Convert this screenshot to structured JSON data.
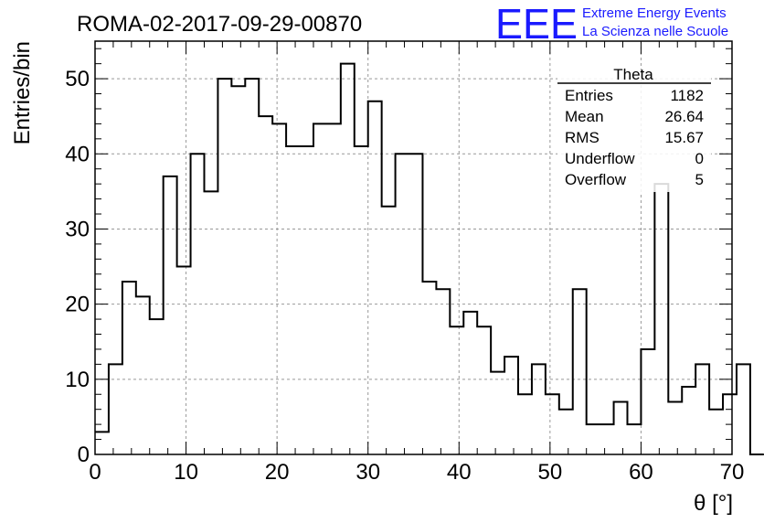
{
  "chart_data": {
    "type": "histogram",
    "title": "ROMA-02-2017-09-29-00870",
    "xlabel": "θ [°]",
    "ylabel": "Entries/bin",
    "xlim": [
      0,
      70
    ],
    "ylim": [
      0,
      55
    ],
    "bin_width": 1.5,
    "x_ticks": [
      0,
      10,
      20,
      30,
      40,
      50,
      60,
      70
    ],
    "y_ticks": [
      0,
      10,
      20,
      30,
      40,
      50
    ],
    "grid": true,
    "values": [
      3,
      12,
      23,
      21,
      18,
      37,
      25,
      40,
      35,
      50,
      49,
      50,
      45,
      44,
      41,
      41,
      44,
      44,
      52,
      41,
      47,
      33,
      40,
      40,
      23,
      22,
      17,
      19,
      17,
      11,
      13,
      8,
      12,
      8,
      6,
      22,
      4,
      4,
      7,
      4,
      14,
      36,
      7,
      9,
      12,
      6,
      8,
      12,
      0
    ]
  },
  "stats_box": {
    "title": "Theta",
    "rows": [
      {
        "label": "Entries",
        "value": "1182"
      },
      {
        "label": "Mean",
        "value": "26.64"
      },
      {
        "label": "RMS",
        "value": "15.67"
      },
      {
        "label": "Underflow",
        "value": "0"
      },
      {
        "label": "Overflow",
        "value": "5"
      }
    ]
  },
  "logo": {
    "text": "EEE",
    "line1": "Extreme Energy Events",
    "line2": "La Scienza nelle Scuole",
    "color": "#1a1aff"
  }
}
